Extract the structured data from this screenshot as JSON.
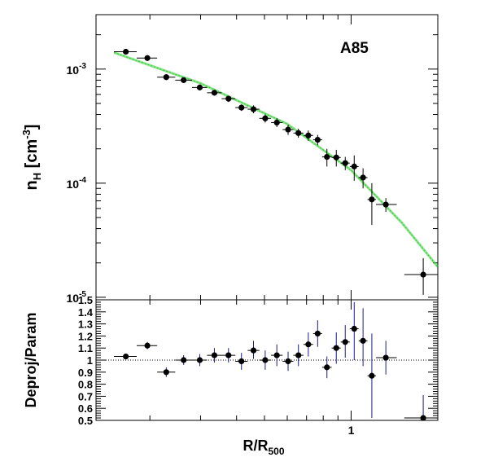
{
  "chart_data": [
    {
      "type": "scatter",
      "annotation": "A85",
      "ylabel": {
        "base": "n",
        "sub": "H",
        "unit_open": " [cm",
        "unit_sup": "-3",
        "unit_close": "]"
      },
      "x_scale": "log",
      "xlim": [
        0.13,
        2.0
      ],
      "y_scale": "log",
      "ylim": [
        9.5e-06,
        0.003
      ],
      "y_ticks": [
        {
          "value": 0.001,
          "base": "10",
          "exp": "-3"
        },
        {
          "value": 0.0001,
          "base": "10",
          "exp": "-4"
        },
        {
          "value": 1e-05,
          "base": "10",
          "exp": "-5"
        }
      ],
      "points": [
        {
          "x": 0.165,
          "y": 0.00142,
          "x_lo": 0.15,
          "x_hi": 0.18,
          "y_lo": 0.00134,
          "y_hi": 0.0015
        },
        {
          "x": 0.196,
          "y": 0.00125,
          "x_lo": 0.18,
          "x_hi": 0.212,
          "y_lo": 0.00118,
          "y_hi": 0.00132
        },
        {
          "x": 0.228,
          "y": 0.00085,
          "x_lo": 0.212,
          "x_hi": 0.245,
          "y_lo": 0.0008,
          "y_hi": 0.0009
        },
        {
          "x": 0.262,
          "y": 0.0008,
          "x_lo": 0.245,
          "x_hi": 0.28,
          "y_lo": 0.00076,
          "y_hi": 0.00084
        },
        {
          "x": 0.298,
          "y": 0.00069,
          "x_lo": 0.28,
          "x_hi": 0.316,
          "y_lo": 0.00065,
          "y_hi": 0.00073
        },
        {
          "x": 0.335,
          "y": 0.00062,
          "x_lo": 0.316,
          "x_hi": 0.355,
          "y_lo": 0.000585,
          "y_hi": 0.000655
        },
        {
          "x": 0.375,
          "y": 0.00055,
          "x_lo": 0.355,
          "x_hi": 0.396,
          "y_lo": 0.000515,
          "y_hi": 0.000585
        },
        {
          "x": 0.416,
          "y": 0.00046,
          "x_lo": 0.396,
          "x_hi": 0.437,
          "y_lo": 0.00043,
          "y_hi": 0.00049
        },
        {
          "x": 0.458,
          "y": 0.000445,
          "x_lo": 0.437,
          "x_hi": 0.48,
          "y_lo": 0.00041,
          "y_hi": 0.00048
        },
        {
          "x": 0.503,
          "y": 0.00037,
          "x_lo": 0.48,
          "x_hi": 0.527,
          "y_lo": 0.00034,
          "y_hi": 0.0004
        },
        {
          "x": 0.552,
          "y": 0.00034,
          "x_lo": 0.527,
          "x_hi": 0.578,
          "y_lo": 0.00031,
          "y_hi": 0.00037
        },
        {
          "x": 0.604,
          "y": 0.000295,
          "x_lo": 0.578,
          "x_hi": 0.63,
          "y_lo": 0.000265,
          "y_hi": 0.000325
        },
        {
          "x": 0.656,
          "y": 0.000275,
          "x_lo": 0.63,
          "x_hi": 0.683,
          "y_lo": 0.00025,
          "y_hi": 0.0003
        },
        {
          "x": 0.71,
          "y": 0.000262,
          "x_lo": 0.683,
          "x_hi": 0.738,
          "y_lo": 0.000235,
          "y_hi": 0.00029
        },
        {
          "x": 0.765,
          "y": 0.00024,
          "x_lo": 0.738,
          "x_hi": 0.793,
          "y_lo": 0.000215,
          "y_hi": 0.000265
        },
        {
          "x": 0.824,
          "y": 0.00017,
          "x_lo": 0.793,
          "x_hi": 0.856,
          "y_lo": 0.00014,
          "y_hi": 0.0002
        },
        {
          "x": 0.888,
          "y": 0.000168,
          "x_lo": 0.856,
          "x_hi": 0.92,
          "y_lo": 0.00014,
          "y_hi": 0.000196
        },
        {
          "x": 0.954,
          "y": 0.00015,
          "x_lo": 0.92,
          "x_hi": 0.989,
          "y_lo": 0.00013,
          "y_hi": 0.00017
        },
        {
          "x": 1.025,
          "y": 0.00014,
          "x_lo": 0.989,
          "x_hi": 1.062,
          "y_lo": 0.000105,
          "y_hi": 0.000175
        },
        {
          "x": 1.1,
          "y": 0.000112,
          "x_lo": 1.062,
          "x_hi": 1.14,
          "y_lo": 9e-05,
          "y_hi": 0.000135
        },
        {
          "x": 1.18,
          "y": 7.2e-05,
          "x_lo": 1.14,
          "x_hi": 1.22,
          "y_lo": 4.3e-05,
          "y_hi": 0.0001
        },
        {
          "x": 1.32,
          "y": 6.5e-05,
          "x_lo": 1.22,
          "x_hi": 1.44,
          "y_lo": 5.6e-05,
          "y_hi": 7.4e-05
        },
        {
          "x": 1.78,
          "y": 1.58e-05,
          "x_lo": 1.53,
          "x_hi": 2.0,
          "y_lo": 1.05e-05,
          "y_hi": 2.2e-05
        }
      ],
      "fit_line": {
        "color": "#2ecc2e",
        "points": [
          [
            0.15,
            0.0014
          ],
          [
            0.3,
            0.00075
          ],
          [
            0.6,
            0.00033
          ],
          [
            1.0,
            0.00013
          ],
          [
            1.5,
            4.5e-05
          ],
          [
            2.0,
            1.85e-05
          ]
        ]
      }
    },
    {
      "type": "scatter",
      "xlabel": {
        "base": "R/R",
        "sub": "500"
      },
      "ylabel": "Deproj/Param",
      "x_scale": "log",
      "xlim": [
        0.13,
        2.0
      ],
      "ylim": [
        0.5,
        1.5
      ],
      "y_tick_labels": [
        "0.5",
        "0.6",
        "0.7",
        "0.8",
        "0.9",
        "1",
        "1.1",
        "1.2",
        "1.3",
        "1.4",
        "1.5"
      ],
      "x_tick_labels": [
        {
          "value": 1,
          "label": "1"
        }
      ],
      "reference_line": 1.0,
      "points": [
        {
          "x": 0.165,
          "y": 1.03,
          "x_lo": 0.15,
          "x_hi": 0.18,
          "y_lo": 1.01,
          "y_hi": 1.05
        },
        {
          "x": 0.196,
          "y": 1.12,
          "x_lo": 0.18,
          "x_hi": 0.212,
          "y_lo": 1.09,
          "y_hi": 1.15
        },
        {
          "x": 0.228,
          "y": 0.9,
          "x_lo": 0.212,
          "x_hi": 0.245,
          "y_lo": 0.86,
          "y_hi": 0.94
        },
        {
          "x": 0.262,
          "y": 1.0,
          "x_lo": 0.245,
          "x_hi": 0.28,
          "y_lo": 0.96,
          "y_hi": 1.04
        },
        {
          "x": 0.298,
          "y": 1.0,
          "x_lo": 0.28,
          "x_hi": 0.316,
          "y_lo": 0.95,
          "y_hi": 1.05
        },
        {
          "x": 0.335,
          "y": 1.04,
          "x_lo": 0.316,
          "x_hi": 0.355,
          "y_lo": 0.98,
          "y_hi": 1.1
        },
        {
          "x": 0.375,
          "y": 1.04,
          "x_lo": 0.355,
          "x_hi": 0.396,
          "y_lo": 0.98,
          "y_hi": 1.1
        },
        {
          "x": 0.416,
          "y": 0.99,
          "x_lo": 0.396,
          "x_hi": 0.437,
          "y_lo": 0.92,
          "y_hi": 1.06
        },
        {
          "x": 0.458,
          "y": 1.08,
          "x_lo": 0.437,
          "x_hi": 0.48,
          "y_lo": 1.01,
          "y_hi": 1.16
        },
        {
          "x": 0.503,
          "y": 1.0,
          "x_lo": 0.48,
          "x_hi": 0.527,
          "y_lo": 0.92,
          "y_hi": 1.08
        },
        {
          "x": 0.552,
          "y": 1.04,
          "x_lo": 0.527,
          "x_hi": 0.578,
          "y_lo": 0.95,
          "y_hi": 1.13
        },
        {
          "x": 0.604,
          "y": 0.99,
          "x_lo": 0.578,
          "x_hi": 0.63,
          "y_lo": 0.91,
          "y_hi": 1.07
        },
        {
          "x": 0.656,
          "y": 1.04,
          "x_lo": 0.63,
          "x_hi": 0.683,
          "y_lo": 0.95,
          "y_hi": 1.13
        },
        {
          "x": 0.71,
          "y": 1.13,
          "x_lo": 0.683,
          "x_hi": 0.738,
          "y_lo": 1.03,
          "y_hi": 1.23
        },
        {
          "x": 0.765,
          "y": 1.22,
          "x_lo": 0.738,
          "x_hi": 0.793,
          "y_lo": 1.11,
          "y_hi": 1.33
        },
        {
          "x": 0.824,
          "y": 0.94,
          "x_lo": 0.793,
          "x_hi": 0.856,
          "y_lo": 0.85,
          "y_hi": 1.03
        },
        {
          "x": 0.888,
          "y": 1.1,
          "x_lo": 0.856,
          "x_hi": 0.92,
          "y_lo": 0.97,
          "y_hi": 1.23
        },
        {
          "x": 0.954,
          "y": 1.15,
          "x_lo": 0.92,
          "x_hi": 0.989,
          "y_lo": 1.02,
          "y_hi": 1.29
        },
        {
          "x": 1.025,
          "y": 1.26,
          "x_lo": 0.989,
          "x_hi": 1.062,
          "y_lo": 1.0,
          "y_hi": 1.48
        },
        {
          "x": 1.1,
          "y": 1.16,
          "x_lo": 1.062,
          "x_hi": 1.14,
          "y_lo": 0.95,
          "y_hi": 1.43
        },
        {
          "x": 1.18,
          "y": 0.87,
          "x_lo": 1.14,
          "x_hi": 1.22,
          "y_lo": 0.52,
          "y_hi": 1.22
        },
        {
          "x": 1.32,
          "y": 1.02,
          "x_lo": 1.22,
          "x_hi": 1.44,
          "y_lo": 0.88,
          "y_hi": 1.16
        },
        {
          "x": 1.78,
          "y": 0.52,
          "x_lo": 1.53,
          "x_hi": 2.0,
          "y_lo": 0.5,
          "y_hi": 0.71
        }
      ]
    }
  ]
}
